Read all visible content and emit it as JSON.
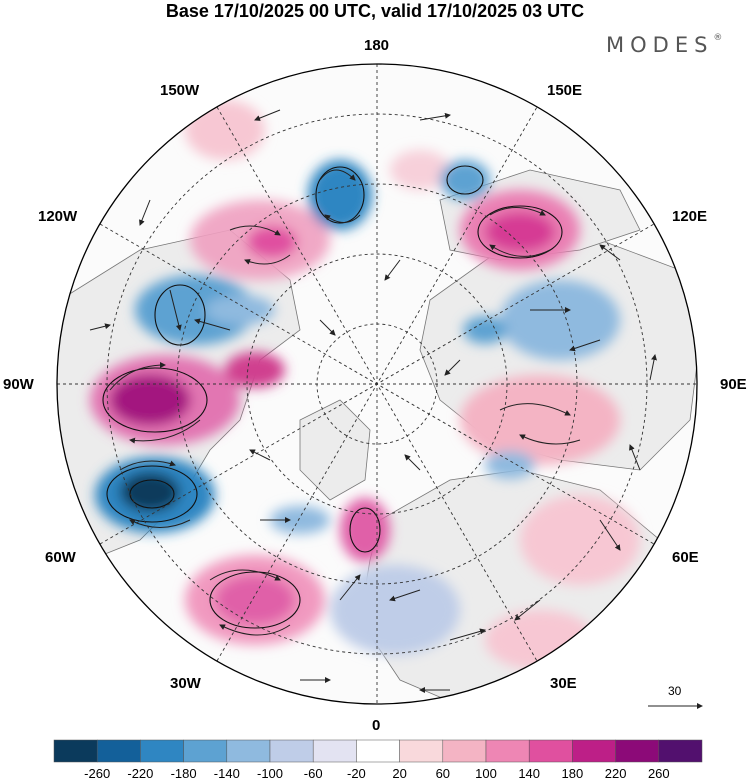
{
  "header": {
    "title": "Base 17/10/2025 00 UTC, valid 17/10/2025 03 UTC",
    "logo": "MODES",
    "logo_mark": "®"
  },
  "longitude_labels": {
    "top": "180",
    "bottom": "0",
    "left": "90W",
    "right": "90E",
    "n150w": "150W",
    "n150e": "150E",
    "n120w": "120W",
    "n120e": "120E",
    "n60w": "60W",
    "n60e": "60E",
    "n30w": "30W",
    "n30e": "30E"
  },
  "reference_vector": {
    "label": "30"
  },
  "colorbar": {
    "tick_labels": [
      "-260",
      "-220",
      "-180",
      "-140",
      "-100",
      "-60",
      "-20",
      "20",
      "60",
      "100",
      "140",
      "180",
      "220",
      "260"
    ],
    "colors": [
      "#0b3a5c",
      "#13609a",
      "#2f86c2",
      "#5da2d2",
      "#8fbadf",
      "#bfcde8",
      "#e3e3f2",
      "#ffffff",
      "#f9d9dc",
      "#f4b4c4",
      "#ee86b4",
      "#e0509f",
      "#bd1f87",
      "#8c0a78",
      "#52106e"
    ]
  },
  "colors": {
    "land": "#ececec",
    "coast": "#666666",
    "grid": "#333333"
  }
}
